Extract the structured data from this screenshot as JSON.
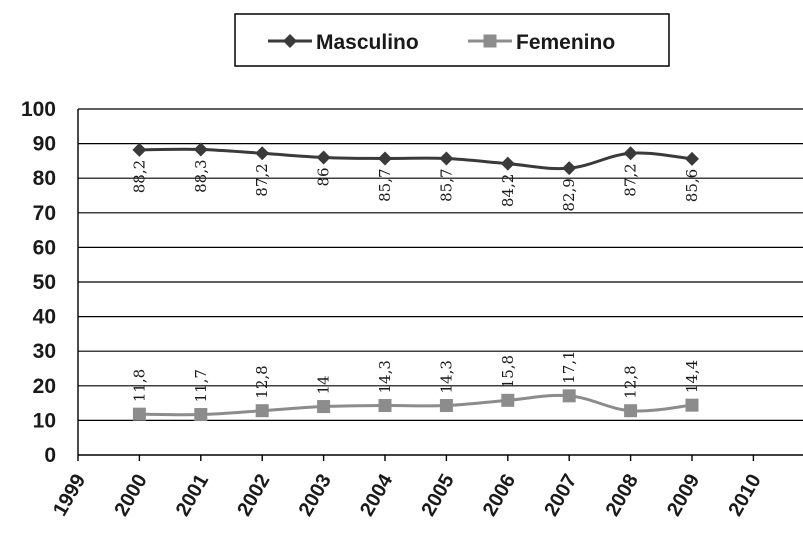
{
  "chart_data": {
    "type": "line",
    "title": "",
    "xlabel": "",
    "ylabel": "",
    "x": [
      "1999",
      "2000",
      "2001",
      "2002",
      "2003",
      "2004",
      "2005",
      "2006",
      "2007",
      "2008",
      "2009",
      "2010"
    ],
    "ylim": [
      0,
      100
    ],
    "yticks": [
      "0",
      "10",
      "20",
      "30",
      "40",
      "50",
      "60",
      "70",
      "80",
      "90",
      "100"
    ],
    "grid": true,
    "legend_position": "top",
    "series": [
      {
        "name": "Masculino",
        "color": "#3a3a3a",
        "marker": "diamond",
        "values": [
          null,
          88.2,
          88.3,
          87.2,
          86,
          85.7,
          85.7,
          84.2,
          82.9,
          87.2,
          85.6,
          null
        ],
        "labels": [
          null,
          "88,2",
          "88,3",
          "87,2",
          "86",
          "85,7",
          "85,7",
          "84,2",
          "82,9",
          "87,2",
          "85,6",
          null
        ]
      },
      {
        "name": "Femenino",
        "color": "#8c8c8c",
        "marker": "square",
        "values": [
          null,
          11.8,
          11.7,
          12.8,
          14,
          14.3,
          14.3,
          15.8,
          17.1,
          12.8,
          14.4,
          null
        ],
        "labels": [
          null,
          "11,8",
          "11,7",
          "12,8",
          "14",
          "14,3",
          "14,3",
          "15,8",
          "17,1",
          "12,8",
          "14,4",
          null
        ]
      }
    ]
  }
}
